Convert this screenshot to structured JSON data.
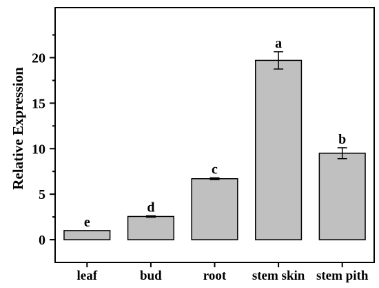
{
  "chart_data": {
    "type": "bar",
    "title": "",
    "xlabel": "",
    "ylabel": "Relative Expression",
    "ylim": [
      -2.5,
      25.5
    ],
    "yticks": [
      0,
      5,
      10,
      15,
      20
    ],
    "grid": false,
    "legend": "none",
    "bar_color": "#c0c0c0",
    "categories": [
      "leaf",
      "bud",
      "root",
      "stem skin",
      "stem pith"
    ],
    "values": [
      1.0,
      2.55,
      6.7,
      19.7,
      9.5
    ],
    "errors": [
      0.0,
      0.08,
      0.1,
      0.95,
      0.6
    ],
    "significance_labels": [
      "e",
      "d",
      "c",
      "a",
      "b"
    ]
  }
}
